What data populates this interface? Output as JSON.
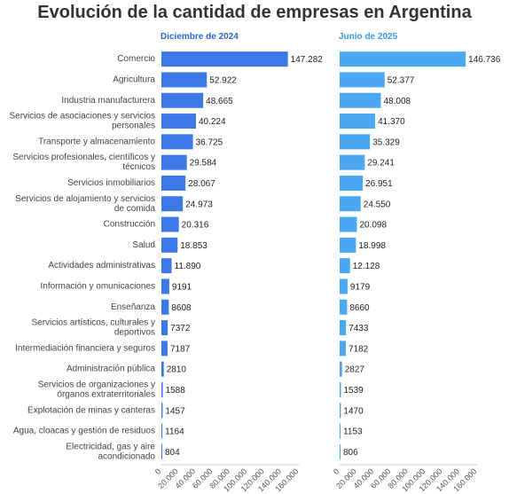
{
  "title": "Evolución de la cantidad de empresas en Argentina",
  "colors": {
    "panel1": "#3d79e6",
    "panel2": "#4aa8f2",
    "panel1_title": "#2f68cc",
    "panel2_title": "#3b9be8"
  },
  "chart_data": {
    "type": "bar",
    "orientation": "horizontal",
    "title": "Evolución de la cantidad de empresas en Argentina",
    "categories": [
      "Comercio",
      "Agricultura",
      "Industria manufacturera",
      "Servicios de asociaciones y servicios personales",
      "Transporte y almacenamiento",
      "Servicios profesionales, científicos y técnicos",
      "Servicios inmobiliarios",
      "Servicios de alojamiento y servicios de comida",
      "Construcción",
      "Salud",
      "Actividades administrativas",
      "Información y omunicaciones",
      "Enseñanza",
      "Servicios artísticos, culturales y deportivos",
      "Intermediación financiera y seguros",
      "Administración pública",
      "Servicios de organizaciones y órganos extraterritoriales",
      "Explotación de minas y canteras",
      "Agua, cloacas y gestión de residuos",
      "Electricidad, gas y aire acondicionado"
    ],
    "category_lines": [
      [
        "Comercio"
      ],
      [
        "Agricultura"
      ],
      [
        "Industria manufacturera"
      ],
      [
        "Servicios de asociaciones y servicios",
        "personales"
      ],
      [
        "Transporte y almacenamiento"
      ],
      [
        "Servicios profesionales, científicos y",
        "técnicos"
      ],
      [
        "Servicios inmobiliarios"
      ],
      [
        "Servicios de alojamiento y servicios",
        "de comida"
      ],
      [
        "Construcción"
      ],
      [
        "Salud"
      ],
      [
        "Actividades administrativas"
      ],
      [
        "Información y omunicaciones"
      ],
      [
        "Enseñanza"
      ],
      [
        "Servicios artísticos, culturales y",
        "deportivos"
      ],
      [
        "Intermediación financiera y seguros"
      ],
      [
        "Administración pública"
      ],
      [
        "Servicios de organizaciones y",
        "órganos extraterritoriales"
      ],
      [
        "Explotación de minas y canteras"
      ],
      [
        "Agua, cloacas y gestión de residuos"
      ],
      [
        "Electricidad, gas y aire",
        "acondicionado"
      ]
    ],
    "series": [
      {
        "name": "Diciembre de 2024",
        "values": [
          147282,
          52922,
          48665,
          40224,
          36725,
          29584,
          28067,
          24973,
          20316,
          18853,
          11890,
          9191,
          8608,
          7372,
          7187,
          2810,
          1588,
          1457,
          1164,
          804
        ],
        "labels": [
          "147.282",
          "52.922",
          "48.665",
          "40.224",
          "36.725",
          "29.584",
          "28.067",
          "24.973",
          "20.316",
          "18.853",
          "11.890",
          "9191",
          "8608",
          "7372",
          "7187",
          "2810",
          "1588",
          "1457",
          "1164",
          "804"
        ]
      },
      {
        "name": "Junio de 2025",
        "values": [
          146736,
          52377,
          48008,
          41370,
          35329,
          29241,
          26951,
          24550,
          20098,
          18998,
          12128,
          9179,
          8660,
          7433,
          7182,
          2827,
          1539,
          1470,
          1153,
          806
        ],
        "labels": [
          "146.736",
          "52.377",
          "48.008",
          "41.370",
          "35.329",
          "29.241",
          "26.951",
          "24.550",
          "20.098",
          "18.998",
          "12.128",
          "9179",
          "8660",
          "7433",
          "7182",
          "2827",
          "1539",
          "1470",
          "1153",
          "806"
        ]
      }
    ],
    "xlim": [
      0,
      160000
    ],
    "xticks": [
      0,
      20000,
      40000,
      60000,
      80000,
      100000,
      120000,
      140000,
      160000
    ],
    "xtick_labels": [
      "0",
      "20.000",
      "40.000",
      "60.000",
      "80.000",
      "100.000",
      "120.000",
      "140.000",
      "160.000"
    ],
    "grid": false
  }
}
